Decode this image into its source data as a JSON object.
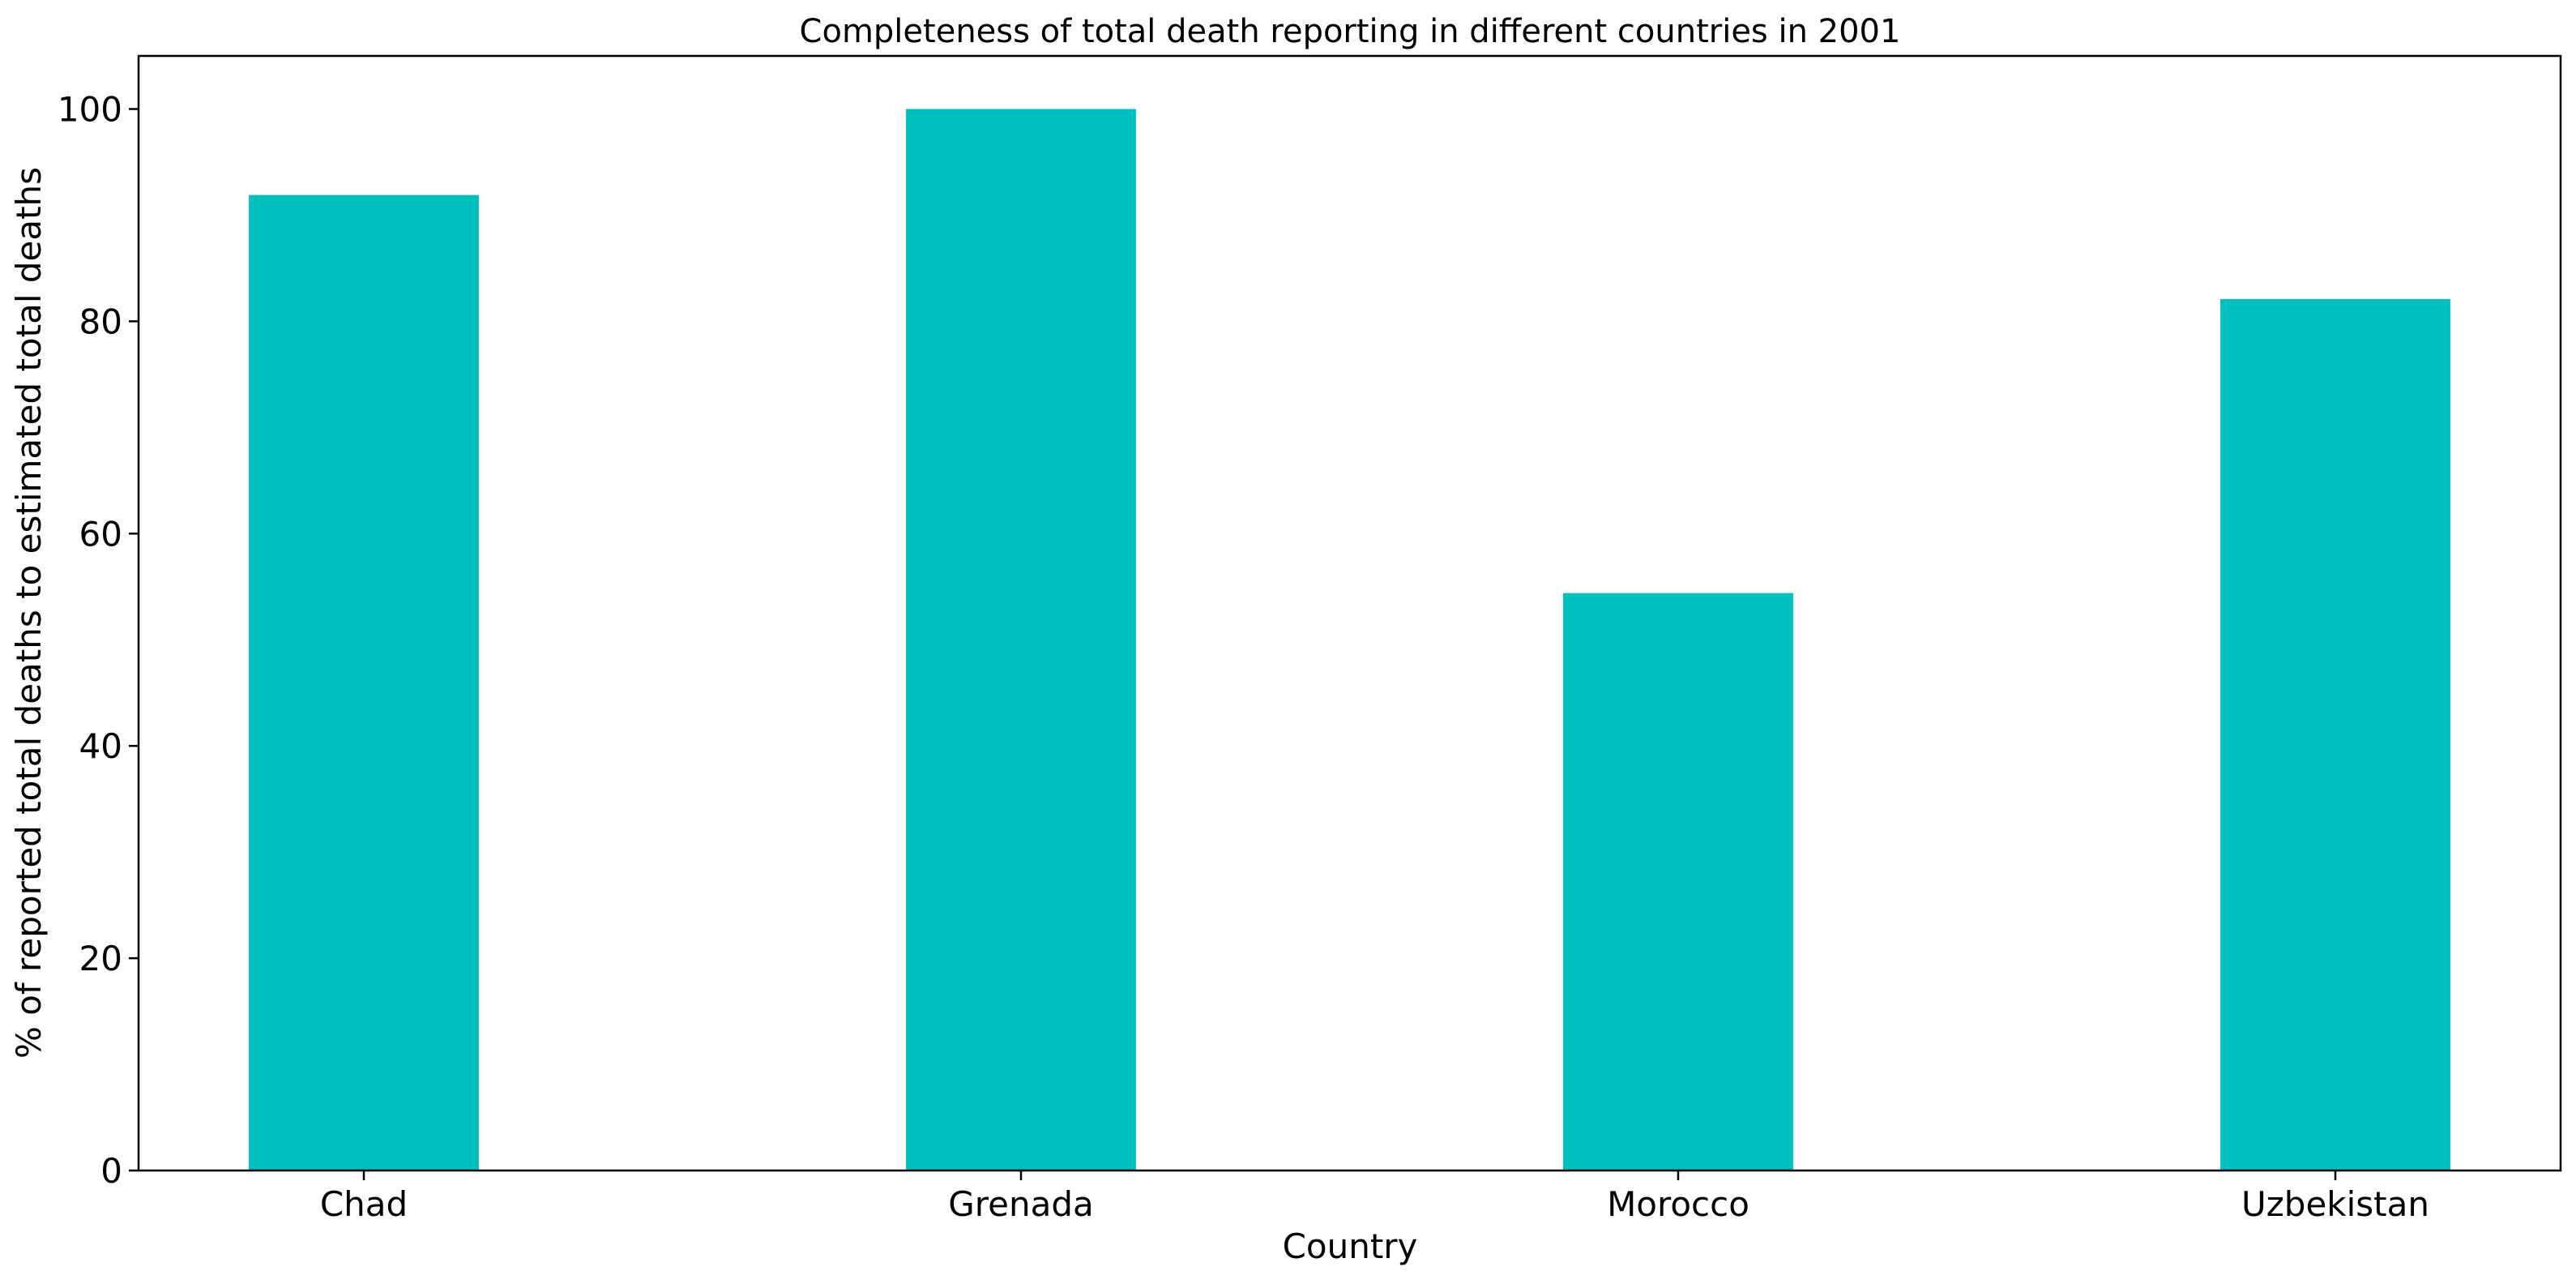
{
  "chart_data": {
    "type": "bar",
    "title": "Completeness of total death reporting in different countries in 2001",
    "xlabel": "Country",
    "ylabel": "% of reported total deaths to estimated total deaths",
    "categories": [
      "Chad",
      "Grenada",
      "Morocco",
      "Uzbekistan"
    ],
    "values": [
      91.9,
      100,
      54.4,
      82.1
    ],
    "ylim": [
      0,
      105
    ],
    "yticks": [
      "0",
      "20",
      "40",
      "60",
      "80",
      "100"
    ],
    "grid": false,
    "legend": "none",
    "bar_color": "#00bfbf"
  }
}
